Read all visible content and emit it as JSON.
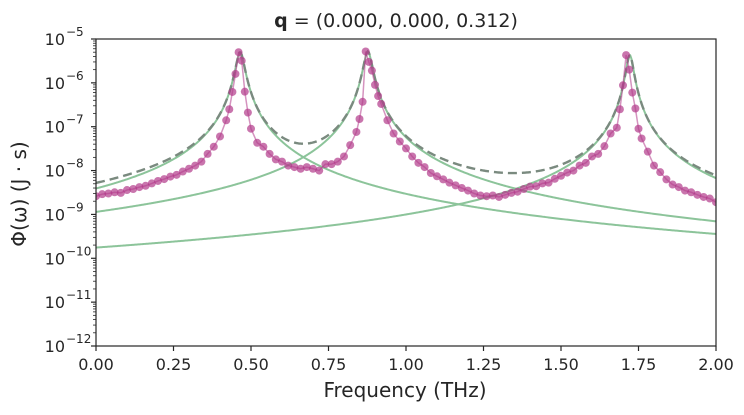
{
  "chart_data": {
    "type": "line",
    "title_bold": "q",
    "title_rest": " = (0.000, 0.000, 0.312)",
    "xlabel": "Frequency (THz)",
    "ylabel": "Φ(ω) (J · s)",
    "xlim": [
      0.0,
      2.0
    ],
    "ylim": [
      1e-12,
      1e-05
    ],
    "yscale": "log",
    "grid": false,
    "x_ticks": [
      "0.00",
      "0.25",
      "0.50",
      "0.75",
      "1.00",
      "1.25",
      "1.50",
      "1.75",
      "2.00"
    ],
    "x_tick_values": [
      0.0,
      0.25,
      0.5,
      0.75,
      1.0,
      1.25,
      1.5,
      1.75,
      2.0
    ],
    "y_tick_exponents": [
      "-12",
      "-11",
      "-10",
      "-9",
      "-8",
      "-7",
      "-6",
      "-5"
    ],
    "y_tick_values": [
      1e-12,
      1e-11,
      1e-10,
      1e-09,
      1e-08,
      1e-07,
      1e-06,
      1e-05
    ],
    "colors": {
      "data_points": "#b23a8a",
      "lorentzians": "#8cc49a",
      "sum_fit": "#7a8a7f"
    },
    "lorentzian_peaks": [
      {
        "center": 0.465,
        "amplitude": 5e-06,
        "width": 0.013
      },
      {
        "center": 0.877,
        "amplitude": 5.2e-06,
        "width": 0.013
      },
      {
        "center": 1.722,
        "amplitude": 4.3e-06,
        "width": 0.011
      }
    ],
    "series": [
      {
        "style": "markers+line",
        "x": [
          0.0,
          0.02,
          0.04,
          0.06,
          0.08,
          0.1,
          0.12,
          0.14,
          0.16,
          0.18,
          0.2,
          0.22,
          0.24,
          0.26,
          0.28,
          0.3,
          0.32,
          0.34,
          0.36,
          0.38,
          0.4,
          0.42,
          0.43,
          0.44,
          0.45,
          0.46,
          0.47,
          0.48,
          0.49,
          0.5,
          0.52,
          0.54,
          0.56,
          0.58,
          0.6,
          0.62,
          0.64,
          0.66,
          0.68,
          0.7,
          0.72,
          0.74,
          0.76,
          0.78,
          0.8,
          0.82,
          0.84,
          0.85,
          0.86,
          0.87,
          0.88,
          0.89,
          0.9,
          0.91,
          0.92,
          0.94,
          0.96,
          0.98,
          1.0,
          1.02,
          1.04,
          1.06,
          1.08,
          1.1,
          1.12,
          1.14,
          1.16,
          1.18,
          1.2,
          1.22,
          1.24,
          1.26,
          1.28,
          1.3,
          1.32,
          1.34,
          1.36,
          1.38,
          1.4,
          1.42,
          1.44,
          1.46,
          1.48,
          1.5,
          1.52,
          1.54,
          1.56,
          1.58,
          1.6,
          1.62,
          1.64,
          1.66,
          1.68,
          1.69,
          1.7,
          1.71,
          1.72,
          1.73,
          1.74,
          1.75,
          1.76,
          1.78,
          1.8,
          1.82,
          1.84,
          1.86,
          1.88,
          1.9,
          1.92,
          1.94,
          1.96,
          1.98,
          2.0
        ],
        "y": [
          2.6e-09,
          2.9e-09,
          3e-09,
          3.2e-09,
          3.1e-09,
          3.6e-09,
          3.8e-09,
          4.2e-09,
          4.5e-09,
          5.1e-09,
          5.8e-09,
          6.4e-09,
          7.3e-09,
          8e-09,
          9.5e-09,
          1.1e-08,
          1.3e-08,
          1.6e-08,
          2.4e-08,
          3.5e-08,
          6e-08,
          1.4e-07,
          2.5e-07,
          6.2e-07,
          1.6e-06,
          5e-06,
          3.2e-06,
          6.3e-07,
          2.1e-07,
          9e-08,
          4.3e-08,
          3.5e-08,
          2.4e-08,
          1.8e-08,
          1.6e-08,
          1.3e-08,
          1.2e-08,
          1.1e-08,
          1.2e-08,
          1.1e-08,
          1e-08,
          1.4e-08,
          1.4e-08,
          1.6e-08,
          2.1e-08,
          3.8e-08,
          7.6e-08,
          1.5e-07,
          3.7e-07,
          5.2e-06,
          3e-06,
          1.9e-06,
          9e-07,
          5e-07,
          3.3e-07,
          1.4e-07,
          7e-08,
          4.6e-08,
          3.2e-08,
          2.1e-08,
          1.5e-08,
          1.2e-08,
          8.8e-09,
          7.4e-09,
          6.3e-09,
          5.3e-09,
          4.6e-09,
          4e-09,
          3.5e-09,
          3e-09,
          2.7e-09,
          2.6e-09,
          2.7e-09,
          2.5e-09,
          2.8e-09,
          3.1e-09,
          3.3e-09,
          3.8e-09,
          4.3e-09,
          4.4e-09,
          5.1e-09,
          5.3e-09,
          6.5e-09,
          7.6e-09,
          9e-09,
          1e-08,
          1.3e-08,
          1.5e-08,
          2.1e-08,
          2.4e-08,
          3.6e-08,
          7e-08,
          9.5e-08,
          2.5e-07,
          8.8e-07,
          4.3e-06,
          2e-06,
          6e-07,
          2.6e-07,
          9e-08,
          5.4e-08,
          2.7e-08,
          1.3e-08,
          9.2e-09,
          6.3e-09,
          4.8e-09,
          4.2e-09,
          3.5e-09,
          3.2e-09,
          2.8e-09,
          2.5e-09,
          2.3e-09,
          1.9e-09
        ]
      }
    ]
  }
}
